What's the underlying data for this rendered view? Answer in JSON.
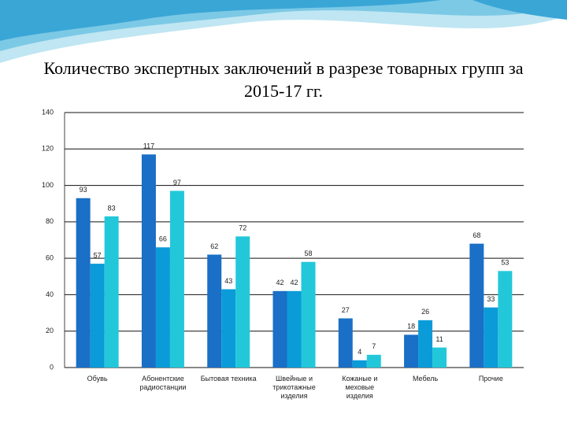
{
  "chart_data": {
    "type": "bar",
    "title": "Количество экспертных заключений в разрезе товарных групп за 2015-17 гг.",
    "categories": [
      "Обувь",
      "Абонентские радиостанции",
      "Бытовая техника",
      "Швейные и трикотажные изделия",
      "Кожаные и меховые изделия",
      "Мебель",
      "Прочие"
    ],
    "series": [
      {
        "color": "#1a6fc6",
        "values": [
          93,
          117,
          62,
          42,
          27,
          18,
          68
        ]
      },
      {
        "color": "#0b9bd9",
        "values": [
          57,
          66,
          43,
          42,
          4,
          26,
          33
        ]
      },
      {
        "color": "#22c8da",
        "values": [
          83,
          97,
          72,
          58,
          7,
          11,
          53
        ]
      }
    ],
    "ylim": [
      0,
      140
    ],
    "yticks": [
      0,
      20,
      40,
      60,
      80,
      100,
      120,
      140
    ],
    "grid": true
  }
}
